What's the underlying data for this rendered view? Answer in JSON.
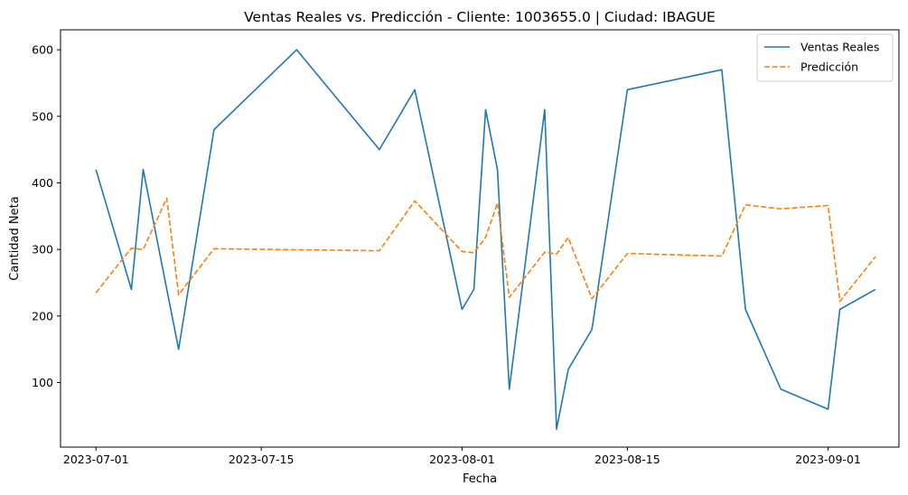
{
  "chart_data": {
    "type": "line",
    "title": "Ventas Reales vs. Predicción - Cliente: 1003655.0 | Ciudad: IBAGUE",
    "xlabel": "Fecha",
    "ylabel": "Cantidad Neta",
    "xlim": [
      "2023-06-28",
      "2023-09-07"
    ],
    "ylim": [
      3,
      630
    ],
    "x_ticks": [
      {
        "date": "2023-07-01",
        "label": "2023-07-01"
      },
      {
        "date": "2023-07-15",
        "label": "2023-07-15"
      },
      {
        "date": "2023-08-01",
        "label": "2023-08-01"
      },
      {
        "date": "2023-08-15",
        "label": "2023-08-15"
      },
      {
        "date": "2023-09-01",
        "label": "2023-09-01"
      }
    ],
    "y_ticks": [
      100,
      200,
      300,
      400,
      500,
      600
    ],
    "grid": false,
    "legend_position": "top-right",
    "series": [
      {
        "name": "Ventas Reales",
        "color": "#1f77b4",
        "style": "solid",
        "points": [
          {
            "x": "2023-07-01",
            "y": 420
          },
          {
            "x": "2023-07-04",
            "y": 240
          },
          {
            "x": "2023-07-05",
            "y": 420
          },
          {
            "x": "2023-07-08",
            "y": 150
          },
          {
            "x": "2023-07-11",
            "y": 480
          },
          {
            "x": "2023-07-18",
            "y": 600
          },
          {
            "x": "2023-07-25",
            "y": 450
          },
          {
            "x": "2023-07-28",
            "y": 540
          },
          {
            "x": "2023-08-01",
            "y": 210
          },
          {
            "x": "2023-08-02",
            "y": 240
          },
          {
            "x": "2023-08-03",
            "y": 510
          },
          {
            "x": "2023-08-04",
            "y": 420
          },
          {
            "x": "2023-08-05",
            "y": 90
          },
          {
            "x": "2023-08-08",
            "y": 510
          },
          {
            "x": "2023-08-09",
            "y": 30
          },
          {
            "x": "2023-08-10",
            "y": 120
          },
          {
            "x": "2023-08-12",
            "y": 180
          },
          {
            "x": "2023-08-15",
            "y": 540
          },
          {
            "x": "2023-08-23",
            "y": 570
          },
          {
            "x": "2023-08-25",
            "y": 210
          },
          {
            "x": "2023-08-28",
            "y": 90
          },
          {
            "x": "2023-09-01",
            "y": 60
          },
          {
            "x": "2023-09-02",
            "y": 210
          },
          {
            "x": "2023-09-05",
            "y": 240
          }
        ]
      },
      {
        "name": "Predicción",
        "color": "#ff7f0e",
        "style": "dashed",
        "points": [
          {
            "x": "2023-07-01",
            "y": 235
          },
          {
            "x": "2023-07-04",
            "y": 302
          },
          {
            "x": "2023-07-05",
            "y": 300
          },
          {
            "x": "2023-07-07",
            "y": 377
          },
          {
            "x": "2023-07-08",
            "y": 232
          },
          {
            "x": "2023-07-11",
            "y": 301
          },
          {
            "x": "2023-07-25",
            "y": 298
          },
          {
            "x": "2023-07-28",
            "y": 373
          },
          {
            "x": "2023-08-01",
            "y": 297
          },
          {
            "x": "2023-08-02",
            "y": 295
          },
          {
            "x": "2023-08-03",
            "y": 318
          },
          {
            "x": "2023-08-04",
            "y": 370
          },
          {
            "x": "2023-08-05",
            "y": 228
          },
          {
            "x": "2023-08-08",
            "y": 296
          },
          {
            "x": "2023-08-09",
            "y": 293
          },
          {
            "x": "2023-08-10",
            "y": 318
          },
          {
            "x": "2023-08-12",
            "y": 226
          },
          {
            "x": "2023-08-15",
            "y": 294
          },
          {
            "x": "2023-08-23",
            "y": 290
          },
          {
            "x": "2023-08-25",
            "y": 367
          },
          {
            "x": "2023-08-28",
            "y": 361
          },
          {
            "x": "2023-09-01",
            "y": 366
          },
          {
            "x": "2023-09-02",
            "y": 222
          },
          {
            "x": "2023-09-05",
            "y": 289
          }
        ]
      }
    ]
  }
}
